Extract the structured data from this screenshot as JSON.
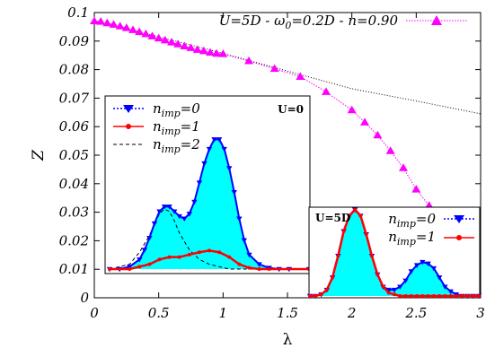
{
  "chart_data": [
    {
      "type": "line",
      "xlabel": "λ",
      "ylabel": "Z",
      "xlim": [
        0,
        3
      ],
      "ylim": [
        0,
        0.1
      ],
      "x_ticks": [
        "0",
        "0.5",
        "1",
        "1.5",
        "2",
        "2.5",
        "3"
      ],
      "y_ticks": [
        "0",
        "0.01",
        "0.02",
        "0.03",
        "0.04",
        "0.05",
        "0.06",
        "0.07",
        "0.08",
        "0.09",
        "0.1"
      ],
      "legend_position": "top-right",
      "series": [
        {
          "name": "U=5D - ω0=0.2D - n=0.90",
          "name_main": "U=5D - ω",
          "name_sub": "0",
          "name_rest": "=0.2D - n=0.90",
          "color": "#ff00ff",
          "marker": "triangle-up",
          "x": [
            0,
            0.05,
            0.1,
            0.15,
            0.2,
            0.25,
            0.3,
            0.35,
            0.4,
            0.45,
            0.5,
            0.55,
            0.6,
            0.65,
            0.7,
            0.75,
            0.8,
            0.85,
            0.9,
            0.95,
            1.0,
            1.2,
            1.4,
            1.6,
            1.8,
            2.0,
            2.1,
            2.2,
            2.3,
            2.4,
            2.5,
            2.6
          ],
          "y": [
            0.097,
            0.0968,
            0.0963,
            0.0958,
            0.0952,
            0.0946,
            0.0939,
            0.0932,
            0.0925,
            0.0917,
            0.091,
            0.0903,
            0.0896,
            0.0889,
            0.0882,
            0.0876,
            0.087,
            0.0865,
            0.086,
            0.0856,
            0.0855,
            0.083,
            0.0803,
            0.0775,
            0.0722,
            0.0658,
            0.0615,
            0.057,
            0.0515,
            0.0455,
            0.038,
            0.0323
          ]
        },
        {
          "style": "dotted",
          "color": "#000000",
          "x": [
            0,
            0.5,
            1.0,
            1.5,
            2.0,
            2.5,
            3.0
          ],
          "y": [
            0.097,
            0.0915,
            0.0857,
            0.0795,
            0.0733,
            0.069,
            0.0645
          ]
        }
      ]
    },
    {
      "type": "area",
      "title": "U=0",
      "legend_position": "top-left",
      "series": [
        {
          "name": "n_imp=0",
          "name_main": "n",
          "name_sub": "imp",
          "name_rest": "=0",
          "color": "#0000ff",
          "fill": "#00ffff",
          "marker": "triangle-down",
          "x": [
            0,
            0.1,
            0.2,
            0.3,
            0.35,
            0.4,
            0.45,
            0.5,
            0.55,
            0.6,
            0.65,
            0.7,
            0.75,
            0.8,
            0.85,
            0.9,
            0.95,
            1.0,
            1.05,
            1.1,
            1.15,
            1.2,
            1.25,
            1.3,
            1.35,
            1.4,
            1.5,
            1.6,
            1.7,
            1.8,
            2.0
          ],
          "y": [
            0,
            0,
            0.001,
            0.004,
            0.008,
            0.013,
            0.019,
            0.024,
            0.026,
            0.026,
            0.024,
            0.022,
            0.021,
            0.023,
            0.028,
            0.036,
            0.044,
            0.05,
            0.054,
            0.054,
            0.05,
            0.042,
            0.032,
            0.021,
            0.012,
            0.006,
            0.002,
            0.0005,
            0,
            0,
            0
          ]
        },
        {
          "name": "n_imp=1",
          "name_main": "n",
          "name_sub": "imp",
          "name_rest": "=1",
          "color": "#ff0000",
          "marker": "circle",
          "x": [
            0,
            0.2,
            0.3,
            0.4,
            0.5,
            0.6,
            0.7,
            0.8,
            0.9,
            1.0,
            1.1,
            1.2,
            1.3,
            1.4,
            1.5,
            1.6,
            2.0
          ],
          "y": [
            0,
            0,
            0.001,
            0.002,
            0.004,
            0.005,
            0.005,
            0.006,
            0.007,
            0.0077,
            0.007,
            0.005,
            0.002,
            0.0005,
            0,
            0,
            0
          ]
        },
        {
          "name": "n_imp=2",
          "name_main": "n",
          "name_sub": "imp",
          "name_rest": "=2",
          "color": "#000000",
          "style": "dashed",
          "x": [
            0,
            0.2,
            0.3,
            0.4,
            0.45,
            0.5,
            0.55,
            0.6,
            0.65,
            0.7,
            0.8,
            0.9,
            1.0,
            1.1,
            1.2,
            1.4,
            2.0
          ],
          "y": [
            0,
            0.002,
            0.007,
            0.014,
            0.019,
            0.023,
            0.025,
            0.024,
            0.02,
            0.015,
            0.008,
            0.004,
            0.002,
            0.001,
            0,
            0,
            0
          ]
        }
      ]
    },
    {
      "type": "area",
      "title": "U=5D",
      "legend_position": "top-right",
      "series": [
        {
          "name": "n_imp=0",
          "name_main": "n",
          "name_sub": "imp",
          "name_rest": "=0",
          "color": "#0000ff",
          "fill": "#00ffff",
          "marker": "triangle-down",
          "x": [
            0,
            0.05,
            0.1,
            0.15,
            0.2,
            0.25,
            0.3,
            0.35,
            0.4,
            0.45,
            0.5,
            0.55,
            0.6,
            0.65,
            0.7,
            0.75,
            0.8,
            0.85,
            0.9,
            0.95,
            1.0,
            1.05,
            1.1,
            1.15,
            1.2,
            1.25,
            1.3,
            1.35,
            1.4,
            1.45,
            1.5
          ],
          "y": [
            0,
            0,
            0.0005,
            0.002,
            0.006,
            0.013,
            0.021,
            0.026,
            0.028,
            0.026,
            0.02,
            0.013,
            0.007,
            0.003,
            0.002,
            0.002,
            0.003,
            0.005,
            0.008,
            0.01,
            0.011,
            0.0105,
            0.009,
            0.006,
            0.003,
            0.0015,
            0.0005,
            0,
            0,
            0,
            0
          ]
        },
        {
          "name": "n_imp=1",
          "name_main": "n",
          "name_sub": "imp",
          "name_rest": "=1",
          "color": "#ff0000",
          "marker": "circle",
          "x": [
            0,
            0.05,
            0.1,
            0.15,
            0.2,
            0.25,
            0.3,
            0.35,
            0.4,
            0.45,
            0.5,
            0.55,
            0.6,
            0.65,
            0.7,
            0.75,
            0.8,
            0.85,
            0.9,
            0.95,
            1.0,
            1.05,
            1.1,
            1.15,
            1.2,
            1.25,
            1.3,
            1.35,
            1.4,
            1.45,
            1.5
          ],
          "y": [
            0,
            0,
            0.0005,
            0.002,
            0.006,
            0.013,
            0.021,
            0.026,
            0.028,
            0.026,
            0.02,
            0.013,
            0.007,
            0.003,
            0.001,
            0.0005,
            0,
            0,
            0,
            0,
            0,
            0,
            0,
            0,
            0,
            0,
            0,
            0,
            0,
            0,
            0
          ]
        }
      ]
    }
  ]
}
